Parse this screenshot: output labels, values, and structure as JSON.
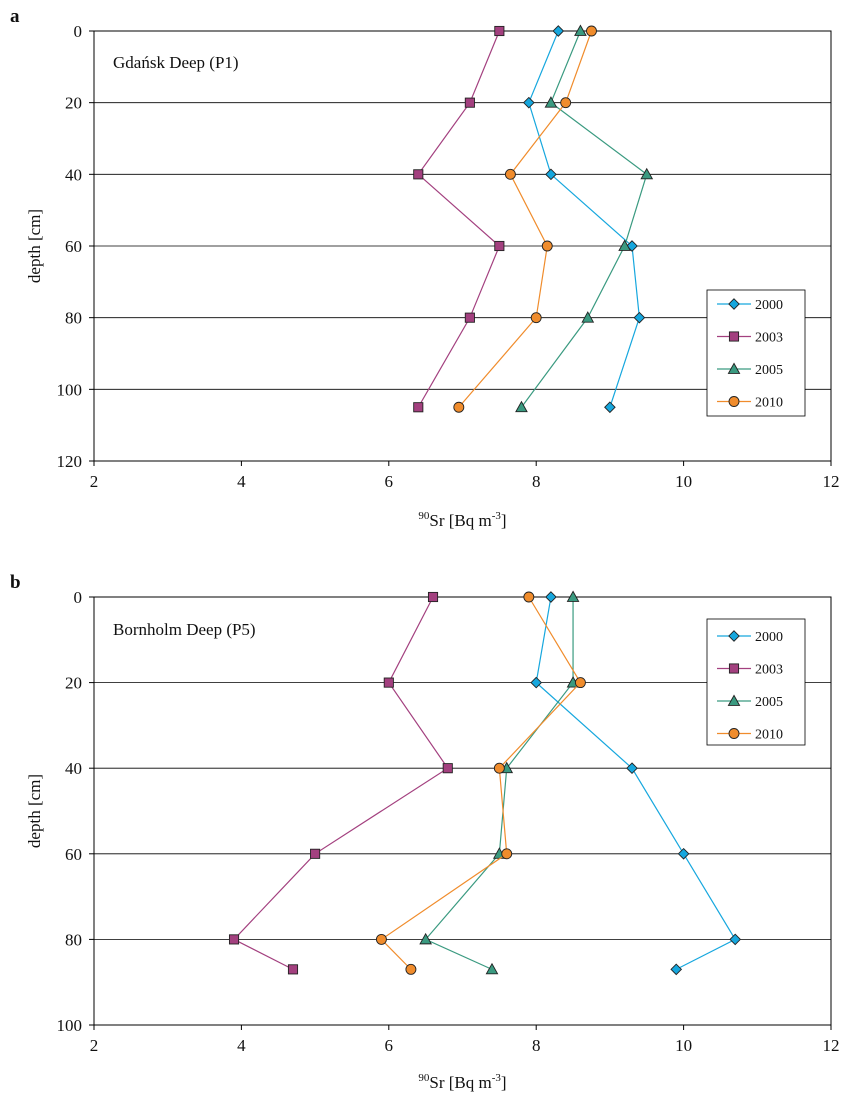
{
  "panels": [
    {
      "letter": "a",
      "site_label": "Gdańsk Deep (P1)",
      "xlabel": {
        "prefix": "90",
        "main": "Sr [Bq m",
        "sup": "-3",
        "close": "]"
      },
      "ylabel": "depth [cm]"
    },
    {
      "letter": "b",
      "site_label": "Bornholm Deep (P5)",
      "xlabel": {
        "prefix": "90",
        "main": "Sr [Bq m",
        "sup": "-3",
        "close": "]"
      },
      "ylabel": "depth [cm]"
    }
  ],
  "chart_data": [
    {
      "type": "line",
      "title": "",
      "xlabel": "90Sr [Bq m-3]",
      "ylabel": "depth [cm]",
      "xlim": [
        2,
        12
      ],
      "ylim": [
        0,
        120
      ],
      "y_reversed": true,
      "xticks": [
        2,
        4,
        6,
        8,
        10,
        12
      ],
      "yticks": [
        0,
        20,
        40,
        60,
        80,
        100,
        120
      ],
      "grid": "horizontal",
      "legend_position": "right",
      "series": [
        {
          "name": "2000",
          "color": "#16a7de",
          "marker": "diamond",
          "points": [
            [
              8.3,
              0
            ],
            [
              7.9,
              20
            ],
            [
              8.2,
              40
            ],
            [
              9.3,
              60
            ],
            [
              9.4,
              80
            ],
            [
              9.0,
              105
            ]
          ]
        },
        {
          "name": "2003",
          "color": "#a3407f",
          "marker": "square",
          "points": [
            [
              7.5,
              0
            ],
            [
              7.1,
              20
            ],
            [
              6.4,
              40
            ],
            [
              7.5,
              60
            ],
            [
              7.1,
              80
            ],
            [
              6.4,
              105
            ]
          ]
        },
        {
          "name": "2005",
          "color": "#3a9a80",
          "marker": "triangle",
          "points": [
            [
              8.6,
              0
            ],
            [
              8.2,
              20
            ],
            [
              9.5,
              40
            ],
            [
              9.2,
              60
            ],
            [
              8.7,
              80
            ],
            [
              7.8,
              105
            ]
          ]
        },
        {
          "name": "2010",
          "color": "#f08c2c",
          "marker": "circle",
          "points": [
            [
              8.75,
              0
            ],
            [
              8.4,
              20
            ],
            [
              7.65,
              40
            ],
            [
              8.15,
              60
            ],
            [
              8.0,
              80
            ],
            [
              6.95,
              105
            ]
          ]
        }
      ]
    },
    {
      "type": "line",
      "title": "",
      "xlabel": "90Sr [Bq m-3]",
      "ylabel": "depth [cm]",
      "xlim": [
        2,
        12
      ],
      "ylim": [
        0,
        100
      ],
      "y_reversed": true,
      "xticks": [
        2,
        4,
        6,
        8,
        10,
        12
      ],
      "yticks": [
        0,
        20,
        40,
        60,
        80,
        100
      ],
      "grid": "horizontal",
      "legend_position": "top-right",
      "series": [
        {
          "name": "2000",
          "color": "#16a7de",
          "marker": "diamond",
          "points": [
            [
              8.2,
              0
            ],
            [
              8.0,
              20
            ],
            [
              9.3,
              40
            ],
            [
              10.0,
              60
            ],
            [
              10.7,
              80
            ],
            [
              9.9,
              87
            ]
          ]
        },
        {
          "name": "2003",
          "color": "#a3407f",
          "marker": "square",
          "points": [
            [
              6.6,
              0
            ],
            [
              6.0,
              20
            ],
            [
              6.8,
              40
            ],
            [
              5.0,
              60
            ],
            [
              3.9,
              80
            ],
            [
              4.7,
              87
            ]
          ]
        },
        {
          "name": "2005",
          "color": "#3a9a80",
          "marker": "triangle",
          "points": [
            [
              8.5,
              0
            ],
            [
              8.5,
              20
            ],
            [
              7.6,
              40
            ],
            [
              7.5,
              60
            ],
            [
              6.5,
              80
            ],
            [
              7.4,
              87
            ]
          ]
        },
        {
          "name": "2010",
          "color": "#f08c2c",
          "marker": "circle",
          "points": [
            [
              7.9,
              0
            ],
            [
              8.6,
              20
            ],
            [
              7.5,
              40
            ],
            [
              7.6,
              60
            ],
            [
              5.9,
              80
            ],
            [
              6.3,
              87
            ]
          ]
        }
      ]
    }
  ]
}
